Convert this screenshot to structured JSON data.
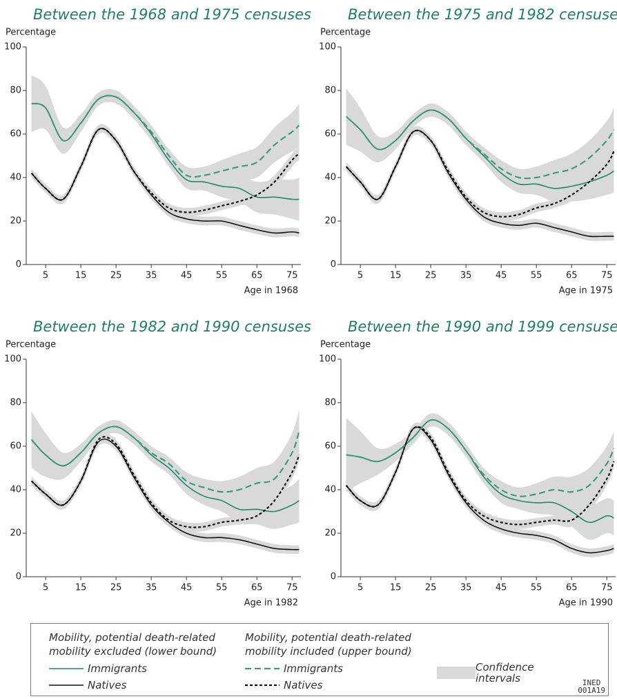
{
  "chart_data": [
    {
      "type": "line",
      "title": "Between the 1968 and 1975 censuses",
      "y_label": "Percentage",
      "x_label": "Age in 1968",
      "x": [
        1,
        5,
        10,
        15,
        20,
        25,
        30,
        35,
        40,
        45,
        50,
        55,
        60,
        65,
        70,
        75,
        77
      ],
      "xlim": [
        -0.5,
        77.5
      ],
      "ylim": [
        0,
        100
      ],
      "xticks": [
        5,
        15,
        25,
        35,
        45,
        55,
        65,
        75
      ],
      "yticks": [
        0,
        20,
        40,
        60,
        80,
        100
      ],
      "ci_color": "#d9d9d9",
      "series": [
        {
          "name": "Immigrants",
          "color": "#1d8a6c",
          "dash": false,
          "values": [
            74,
            72,
            57,
            65,
            76,
            77,
            70,
            60,
            48,
            39,
            38,
            36,
            35,
            31,
            31,
            30,
            30
          ],
          "ci": [
            13,
            10,
            6,
            4,
            3,
            3,
            3,
            3,
            3,
            4,
            4,
            5,
            6,
            7,
            8,
            9,
            10
          ]
        },
        {
          "name": "Natives",
          "color": "#111111",
          "dash": false,
          "values": [
            42,
            35,
            30,
            45,
            62,
            57,
            43,
            32,
            24,
            21,
            20,
            20,
            18,
            16,
            14.5,
            15,
            14.5
          ],
          "ci": [
            2,
            2,
            2,
            2,
            2,
            2,
            2,
            2,
            2,
            2,
            2,
            2,
            2,
            2,
            2,
            2,
            2
          ]
        },
        {
          "name": "Immigrants",
          "color": "#3d9b7f",
          "dash": true,
          "values": [
            74,
            72,
            57,
            65,
            76,
            77,
            70,
            61,
            50,
            41,
            41,
            43,
            45,
            47,
            55,
            61,
            64
          ],
          "ci": [
            13,
            10,
            6,
            4,
            3,
            3,
            3,
            3,
            3,
            4,
            4,
            5,
            6,
            7,
            8,
            9,
            10
          ]
        },
        {
          "name": "Natives",
          "color": "#111111",
          "dash": true,
          "values": [
            42,
            35,
            30,
            45,
            62,
            57,
            43,
            33,
            26,
            24,
            25,
            27,
            29,
            32,
            38,
            48,
            51
          ],
          "ci": [
            2,
            2,
            2,
            2,
            2,
            2,
            2,
            2,
            2,
            2,
            2,
            2,
            2,
            3,
            3,
            3,
            3
          ]
        }
      ]
    },
    {
      "type": "line",
      "title": "Between the 1975 and 1982 censuses",
      "y_label": "Percentage",
      "x_label": "Age in 1975",
      "x": [
        1,
        5,
        10,
        15,
        20,
        25,
        30,
        35,
        40,
        45,
        50,
        55,
        60,
        65,
        70,
        75,
        77
      ],
      "xlim": [
        -0.5,
        77.5
      ],
      "ylim": [
        0,
        100
      ],
      "xticks": [
        5,
        15,
        25,
        35,
        45,
        55,
        65,
        75
      ],
      "yticks": [
        0,
        20,
        40,
        60,
        80,
        100
      ],
      "ci_color": "#d9d9d9",
      "series": [
        {
          "color": "#1d8a6c",
          "dash": false,
          "values": [
            68,
            62,
            53,
            57,
            66,
            71,
            67,
            58,
            50,
            42,
            37,
            37,
            35,
            36,
            38,
            41,
            43
          ],
          "ci": [
            13,
            10,
            6,
            4,
            3,
            3,
            3,
            3,
            3,
            4,
            4,
            5,
            6,
            7,
            8,
            9,
            10
          ]
        },
        {
          "color": "#111111",
          "dash": false,
          "values": [
            45,
            38,
            30,
            45,
            61,
            57,
            42,
            30,
            22,
            19,
            18,
            19,
            17,
            15,
            13,
            13,
            13
          ],
          "ci": [
            2,
            2,
            2,
            2,
            2,
            2,
            2,
            2,
            2,
            2,
            2,
            2,
            2,
            2,
            2,
            2,
            2
          ]
        },
        {
          "color": "#3d9b7f",
          "dash": true,
          "values": [
            68,
            62,
            53,
            57,
            66,
            71,
            67,
            58,
            51,
            44,
            40,
            40,
            42,
            44,
            49,
            57,
            62
          ],
          "ci": [
            13,
            10,
            6,
            4,
            3,
            3,
            3,
            3,
            3,
            4,
            4,
            5,
            6,
            7,
            8,
            9,
            10
          ]
        },
        {
          "color": "#111111",
          "dash": true,
          "values": [
            45,
            38,
            30,
            45,
            61,
            57,
            43,
            31,
            24,
            22,
            23,
            26,
            28,
            32,
            38,
            46,
            52
          ],
          "ci": [
            2,
            2,
            2,
            2,
            2,
            2,
            2,
            2,
            2,
            2,
            2,
            2,
            2,
            3,
            3,
            3,
            3
          ]
        }
      ]
    },
    {
      "type": "line",
      "title": "Between the 1982 and 1990 censuses",
      "y_label": "Percentage",
      "x_label": "Age in 1982",
      "x": [
        1,
        5,
        10,
        15,
        20,
        25,
        30,
        35,
        40,
        45,
        50,
        55,
        60,
        65,
        70,
        75,
        77
      ],
      "xlim": [
        -0.5,
        77.5
      ],
      "ylim": [
        0,
        100
      ],
      "xticks": [
        5,
        15,
        25,
        35,
        45,
        55,
        65,
        75
      ],
      "yticks": [
        0,
        20,
        40,
        60,
        80,
        100
      ],
      "ci_color": "#d9d9d9",
      "series": [
        {
          "color": "#1d8a6c",
          "dash": false,
          "values": [
            63,
            56,
            51,
            57,
            66,
            69,
            64,
            56,
            50,
            42,
            37,
            35,
            31,
            31,
            30,
            33,
            35
          ],
          "ci": [
            13,
            10,
            6,
            4,
            3,
            3,
            3,
            3,
            3,
            4,
            4,
            5,
            6,
            7,
            8,
            9,
            10
          ]
        },
        {
          "color": "#111111",
          "dash": false,
          "values": [
            44,
            38,
            33,
            44,
            62,
            60,
            46,
            33,
            25,
            20,
            18,
            18,
            17,
            15,
            13,
            12.5,
            12.5
          ],
          "ci": [
            2,
            2,
            2,
            2,
            2,
            2,
            2,
            2,
            2,
            2,
            2,
            2,
            2,
            2,
            2,
            2,
            2
          ]
        },
        {
          "color": "#3d9b7f",
          "dash": true,
          "values": [
            63,
            56,
            51,
            57,
            66,
            69,
            64,
            57,
            52,
            44,
            41,
            39,
            40,
            43,
            45,
            57,
            67
          ],
          "ci": [
            13,
            10,
            6,
            4,
            3,
            3,
            3,
            3,
            3,
            4,
            4,
            5,
            6,
            7,
            8,
            9,
            10
          ]
        },
        {
          "color": "#111111",
          "dash": true,
          "values": [
            44,
            38,
            33,
            44,
            63,
            61,
            47,
            34,
            26,
            23,
            23,
            25,
            26,
            28,
            35,
            48,
            56
          ],
          "ci": [
            2,
            2,
            2,
            2,
            2,
            2,
            2,
            2,
            2,
            2,
            2,
            2,
            2,
            3,
            3,
            3,
            3
          ]
        }
      ]
    },
    {
      "type": "line",
      "title": "Between the 1990 and 1999 censuses",
      "y_label": "Percentage",
      "x_label": "Age in 1990",
      "x": [
        1,
        5,
        10,
        15,
        20,
        25,
        30,
        35,
        40,
        45,
        50,
        55,
        60,
        65,
        70,
        75,
        77
      ],
      "xlim": [
        -0.5,
        77.5
      ],
      "ylim": [
        0,
        100
      ],
      "xticks": [
        5,
        15,
        25,
        35,
        45,
        55,
        65,
        75
      ],
      "yticks": [
        0,
        20,
        40,
        60,
        80,
        100
      ],
      "ci_color": "#d9d9d9",
      "series": [
        {
          "color": "#1d8a6c",
          "dash": false,
          "values": [
            56,
            55,
            53,
            57,
            64,
            72,
            68,
            58,
            46,
            38,
            35,
            34,
            34,
            30,
            25,
            28,
            27
          ],
          "ci": [
            17,
            12,
            6,
            4,
            3,
            3,
            3,
            3,
            3,
            4,
            4,
            5,
            6,
            7,
            8,
            8,
            8
          ]
        },
        {
          "color": "#111111",
          "dash": false,
          "values": [
            42,
            35,
            33,
            48,
            68,
            63,
            47,
            34,
            26,
            22,
            20,
            19,
            17,
            13,
            11,
            12,
            13
          ],
          "ci": [
            2,
            2,
            2,
            2,
            2,
            2,
            2,
            2,
            2,
            2,
            2,
            2,
            2,
            2,
            2,
            2,
            2
          ]
        },
        {
          "color": "#3d9b7f",
          "dash": true,
          "values": [
            56,
            55,
            53,
            57,
            64,
            72,
            68,
            58,
            47,
            40,
            37,
            38,
            40,
            39,
            42,
            52,
            59
          ],
          "ci": [
            17,
            12,
            6,
            4,
            3,
            3,
            3,
            3,
            3,
            4,
            4,
            5,
            6,
            7,
            8,
            8,
            8
          ]
        },
        {
          "color": "#111111",
          "dash": true,
          "values": [
            42,
            35,
            33,
            48,
            68,
            64,
            48,
            35,
            28,
            25,
            24,
            25,
            26,
            26,
            33,
            45,
            53
          ],
          "ci": [
            2,
            2,
            2,
            2,
            2,
            2,
            2,
            2,
            2,
            2,
            2,
            2,
            2,
            3,
            3,
            3,
            3
          ]
        }
      ]
    }
  ],
  "legend": {
    "headings": [
      "Mobility, potential death-related mobility excluded (lower bound)",
      "Mobility, potential death-related mobility included (upper bound)"
    ],
    "ci_label": "Confidence intervals",
    "code": [
      "INED",
      "001A19"
    ]
  }
}
